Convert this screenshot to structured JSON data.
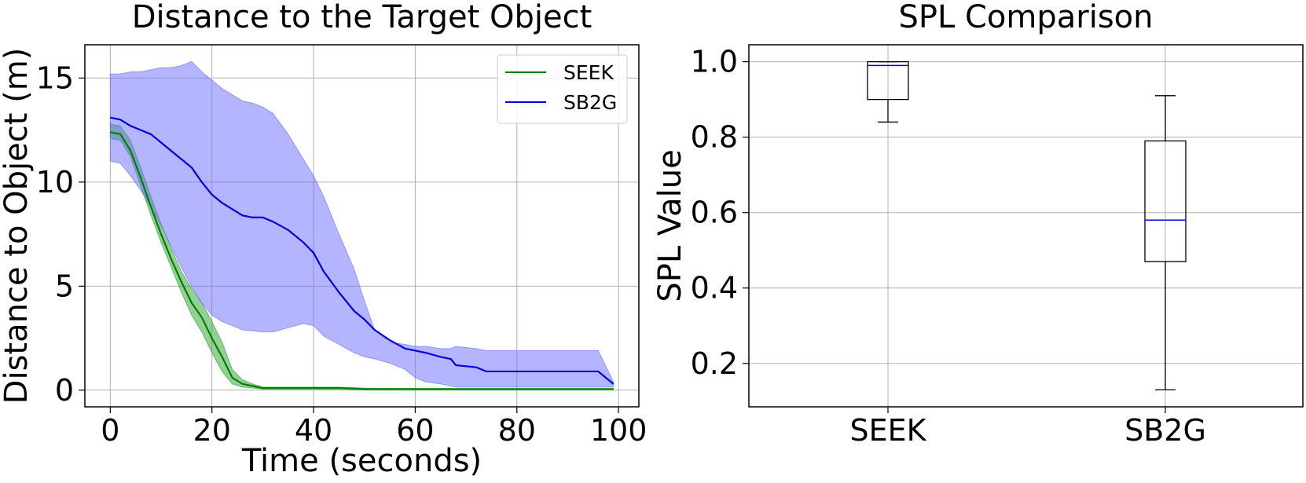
{
  "chart_data": [
    {
      "type": "line",
      "title": "Distance to the Target Object",
      "xlabel": "Time (seconds)",
      "ylabel": "Distance to Object (m)",
      "xlim": [
        -5,
        104
      ],
      "ylim": [
        -0.8,
        16.6
      ],
      "xticks": [
        0,
        20,
        40,
        60,
        80,
        100
      ],
      "yticks": [
        0,
        5,
        10,
        15
      ],
      "grid": true,
      "legend_position": "top-right",
      "series": [
        {
          "name": "SEEK",
          "color": "#008000",
          "band_color": "#2ca02c",
          "x": [
            0,
            2,
            4,
            6,
            8,
            10,
            12,
            14,
            16,
            18,
            20,
            22,
            24,
            26,
            28,
            30,
            35,
            40,
            45,
            50,
            60,
            70,
            80,
            90,
            99
          ],
          "mean": [
            12.4,
            12.3,
            11.5,
            10.2,
            8.8,
            7.5,
            6.3,
            5.2,
            4.2,
            3.5,
            2.5,
            1.6,
            0.6,
            0.3,
            0.2,
            0.1,
            0.1,
            0.1,
            0.1,
            0.05,
            0.05,
            0.05,
            0.05,
            0.05,
            0.05
          ],
          "lower": [
            12.1,
            12.0,
            11.2,
            9.8,
            8.4,
            7.1,
            5.9,
            4.7,
            3.6,
            2.8,
            1.8,
            0.9,
            0.3,
            0.15,
            0.1,
            0.05,
            0.05,
            0.05,
            0.05,
            0.03,
            0.03,
            0.03,
            0.03,
            0.03,
            0.03
          ],
          "upper": [
            12.8,
            12.7,
            12.0,
            10.7,
            9.3,
            8.0,
            6.8,
            5.7,
            4.9,
            4.2,
            3.3,
            2.3,
            1.0,
            0.5,
            0.3,
            0.15,
            0.15,
            0.15,
            0.15,
            0.1,
            0.08,
            0.08,
            0.08,
            0.08,
            0.08
          ]
        },
        {
          "name": "SB2G",
          "color": "#0000e0",
          "band_color": "#6b6bff",
          "x": [
            0,
            2,
            4,
            6,
            8,
            10,
            12,
            14,
            16,
            18,
            20,
            22,
            24,
            26,
            28,
            30,
            32,
            35,
            38,
            40,
            42,
            45,
            48,
            50,
            52,
            55,
            58,
            60,
            62,
            65,
            67,
            68,
            72,
            74,
            80,
            90,
            96,
            99
          ],
          "mean": [
            13.1,
            13.0,
            12.7,
            12.5,
            12.3,
            11.9,
            11.5,
            11.1,
            10.7,
            10.0,
            9.4,
            9.0,
            8.7,
            8.4,
            8.3,
            8.3,
            8.1,
            7.7,
            7.1,
            6.6,
            5.7,
            4.7,
            3.8,
            3.4,
            2.9,
            2.4,
            2.0,
            1.9,
            1.8,
            1.6,
            1.5,
            1.2,
            1.1,
            0.9,
            0.9,
            0.9,
            0.9,
            0.3
          ],
          "lower": [
            11.0,
            10.9,
            10.3,
            9.6,
            8.8,
            7.9,
            6.9,
            5.9,
            5.0,
            4.2,
            3.6,
            3.3,
            3.1,
            2.9,
            2.85,
            2.8,
            2.8,
            3.0,
            3.2,
            3.1,
            2.6,
            2.2,
            1.8,
            1.6,
            1.5,
            1.3,
            1.0,
            0.6,
            0.4,
            0.3,
            0.2,
            0.15,
            0.15,
            0.15,
            0.15,
            0.15,
            0.15,
            0.15
          ],
          "upper": [
            15.2,
            15.2,
            15.3,
            15.3,
            15.4,
            15.5,
            15.5,
            15.6,
            15.8,
            15.3,
            14.9,
            14.5,
            14.2,
            13.9,
            13.8,
            13.6,
            13.3,
            12.3,
            11.1,
            10.3,
            9.3,
            7.5,
            5.8,
            4.3,
            2.9,
            2.3,
            2.2,
            2.1,
            2.1,
            2.0,
            2.0,
            2.1,
            2.0,
            1.9,
            1.9,
            1.9,
            1.9,
            0.4
          ]
        }
      ]
    },
    {
      "type": "box",
      "title": "SPL Comparison",
      "xlabel": "",
      "ylabel": "SPL Value",
      "ylim": [
        0.085,
        1.045
      ],
      "yticks": [
        0.2,
        0.4,
        0.6,
        0.8,
        1.0
      ],
      "ytick_labels": [
        "0.2",
        "0.4",
        "0.6",
        "0.8",
        "1.0"
      ],
      "grid": true,
      "categories": [
        "SEEK",
        "SB2G"
      ],
      "boxes": [
        {
          "name": "SEEK",
          "whisker_low": 0.84,
          "q1": 0.9,
          "median": 0.99,
          "q3": 1.0,
          "whisker_high": 1.0
        },
        {
          "name": "SB2G",
          "whisker_low": 0.13,
          "q1": 0.47,
          "median": 0.58,
          "q3": 0.79,
          "whisker_high": 0.91
        }
      ],
      "median_color": "#0000e0"
    }
  ]
}
